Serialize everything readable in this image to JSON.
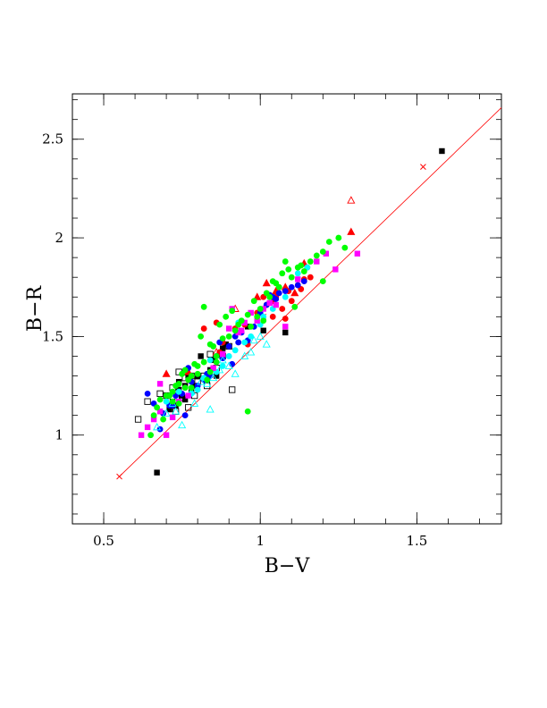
{
  "chart_data": {
    "type": "scatter",
    "xlabel": "B−V",
    "ylabel": "B−R",
    "xlim": [
      0.4,
      1.77
    ],
    "ylim": [
      0.55,
      2.73
    ],
    "x_ticks": [
      {
        "value": 0.5,
        "label": "0.5"
      },
      {
        "value": 1.0,
        "label": "1"
      },
      {
        "value": 1.5,
        "label": "1.5"
      }
    ],
    "y_ticks": [
      {
        "value": 1.0,
        "label": "1"
      },
      {
        "value": 1.5,
        "label": "1.5"
      },
      {
        "value": 2.0,
        "label": "2"
      },
      {
        "value": 2.5,
        "label": "2.5"
      }
    ],
    "x_minor_step": 0.1,
    "y_minor_step": 0.1,
    "grid": false,
    "reference_line": {
      "color": "#ff0000",
      "x": [
        0.55,
        1.77
      ],
      "y": [
        0.79,
        2.66
      ],
      "markers": [
        [
          0.55,
          0.79
        ],
        [
          1.01,
          1.6
        ],
        [
          1.52,
          2.36
        ]
      ]
    },
    "series": [
      {
        "color": "#000000",
        "marker": "square-filled",
        "points": [
          [
            1.58,
            2.44
          ],
          [
            0.67,
            0.81
          ],
          [
            1.08,
            1.52
          ],
          [
            1.01,
            1.53
          ],
          [
            0.71,
            1.13
          ],
          [
            0.74,
            1.27
          ],
          [
            0.76,
            1.25
          ],
          [
            0.78,
            1.22
          ],
          [
            0.8,
            1.3
          ],
          [
            0.83,
            1.28
          ],
          [
            0.85,
            1.38
          ],
          [
            0.88,
            1.44
          ],
          [
            0.76,
            1.18
          ],
          [
            0.79,
            1.25
          ],
          [
            0.81,
            1.4
          ],
          [
            0.75,
            1.2
          ],
          [
            0.72,
            1.17
          ],
          [
            0.84,
            1.33
          ],
          [
            0.89,
            1.46
          ],
          [
            0.96,
            1.55
          ],
          [
            0.77,
            1.29
          ],
          [
            0.74,
            1.23
          ],
          [
            0.86,
            1.3
          ],
          [
            0.73,
            1.15
          ]
        ]
      },
      {
        "color": "#000000",
        "marker": "square-open",
        "points": [
          [
            0.61,
            1.08
          ],
          [
            0.64,
            1.17
          ],
          [
            0.68,
            1.21
          ],
          [
            0.7,
            1.2
          ],
          [
            0.72,
            1.24
          ],
          [
            0.74,
            1.32
          ],
          [
            0.77,
            1.14
          ],
          [
            0.78,
            1.3
          ],
          [
            0.8,
            1.27
          ],
          [
            0.82,
            1.3
          ],
          [
            0.84,
            1.41
          ],
          [
            0.86,
            1.34
          ],
          [
            0.88,
            1.4
          ],
          [
            0.9,
            1.45
          ],
          [
            0.91,
            1.23
          ],
          [
            0.75,
            1.19
          ],
          [
            0.79,
            1.2
          ],
          [
            0.83,
            1.25
          ],
          [
            0.73,
            1.12
          ],
          [
            0.76,
            1.29
          ]
        ]
      },
      {
        "color": "#ff0000",
        "marker": "circle-filled",
        "points": [
          [
            0.82,
            1.54
          ],
          [
            0.86,
            1.57
          ],
          [
            0.88,
            1.47
          ],
          [
            0.92,
            1.54
          ],
          [
            0.95,
            1.56
          ],
          [
            0.99,
            1.62
          ],
          [
            1.02,
            1.66
          ],
          [
            1.05,
            1.7
          ],
          [
            1.07,
            1.64
          ],
          [
            1.08,
            1.59
          ],
          [
            1.1,
            1.68
          ],
          [
            1.12,
            1.76
          ],
          [
            1.14,
            1.79
          ],
          [
            1.16,
            1.8
          ],
          [
            1.09,
            1.73
          ],
          [
            1.04,
            1.6
          ],
          [
            0.96,
            1.46
          ],
          [
            0.87,
            1.42
          ],
          [
            1.13,
            1.74
          ],
          [
            1.01,
            1.7
          ],
          [
            1.15,
            1.85
          ],
          [
            1.06,
            1.75
          ]
        ]
      },
      {
        "color": "#ff0000",
        "marker": "triangle-filled",
        "points": [
          [
            1.29,
            2.03
          ],
          [
            1.02,
            1.77
          ],
          [
            1.05,
            1.73
          ],
          [
            1.08,
            1.75
          ],
          [
            1.11,
            1.72
          ],
          [
            1.14,
            1.87
          ],
          [
            0.7,
            1.31
          ],
          [
            0.77,
            1.32
          ],
          [
            0.99,
            1.7
          ],
          [
            1.04,
            1.68
          ]
        ]
      },
      {
        "color": "#ff0000",
        "marker": "triangle-open",
        "points": [
          [
            1.29,
            2.19
          ],
          [
            0.92,
            1.64
          ],
          [
            0.86,
            1.42
          ]
        ]
      },
      {
        "color": "#0000ff",
        "marker": "circle-filled",
        "points": [
          [
            0.64,
            1.21
          ],
          [
            0.66,
            1.16
          ],
          [
            0.68,
            1.03
          ],
          [
            0.69,
            1.11
          ],
          [
            0.71,
            1.15
          ],
          [
            0.73,
            1.2
          ],
          [
            0.76,
            1.1
          ],
          [
            0.78,
            1.27
          ],
          [
            0.8,
            1.25
          ],
          [
            0.82,
            1.28
          ],
          [
            0.84,
            1.3
          ],
          [
            0.86,
            1.4
          ],
          [
            0.88,
            1.39
          ],
          [
            0.9,
            1.45
          ],
          [
            0.92,
            1.5
          ],
          [
            0.94,
            1.52
          ],
          [
            0.96,
            1.48
          ],
          [
            0.98,
            1.55
          ],
          [
            1.0,
            1.62
          ],
          [
            1.02,
            1.66
          ],
          [
            1.04,
            1.7
          ],
          [
            1.06,
            1.72
          ],
          [
            1.08,
            1.73
          ],
          [
            1.1,
            1.75
          ],
          [
            1.12,
            1.76
          ],
          [
            1.14,
            1.78
          ],
          [
            0.87,
            1.47
          ],
          [
            0.77,
            1.34
          ],
          [
            0.75,
            1.21
          ],
          [
            0.72,
            1.15
          ],
          [
            0.83,
            1.31
          ],
          [
            0.91,
            1.36
          ],
          [
            0.93,
            1.47
          ],
          [
            1.03,
            1.71
          ],
          [
            1.05,
            1.69
          ]
        ]
      },
      {
        "color": "#00ffff",
        "marker": "circle-filled",
        "points": [
          [
            0.7,
            1.17
          ],
          [
            0.74,
            1.22
          ],
          [
            0.78,
            1.21
          ],
          [
            0.82,
            1.29
          ],
          [
            0.86,
            1.32
          ],
          [
            0.9,
            1.4
          ],
          [
            0.93,
            1.57
          ],
          [
            0.95,
            1.47
          ],
          [
            0.97,
            1.5
          ],
          [
            1.0,
            1.56
          ],
          [
            1.04,
            1.64
          ],
          [
            1.08,
            1.7
          ],
          [
            1.12,
            1.82
          ],
          [
            1.15,
            1.85
          ],
          [
            0.88,
            1.35
          ],
          [
            0.84,
            1.38
          ],
          [
            0.92,
            1.43
          ],
          [
            0.8,
            1.23
          ],
          [
            1.01,
            1.6
          ],
          [
            0.94,
            1.58
          ]
        ]
      },
      {
        "color": "#00ffff",
        "marker": "triangle-open",
        "points": [
          [
            0.67,
            1.04
          ],
          [
            0.7,
            1.11
          ],
          [
            0.72,
            1.16
          ],
          [
            0.75,
            1.05
          ],
          [
            0.78,
            1.22
          ],
          [
            0.81,
            1.27
          ],
          [
            0.84,
            1.13
          ],
          [
            0.87,
            1.33
          ],
          [
            0.9,
            1.35
          ],
          [
            0.92,
            1.31
          ],
          [
            0.95,
            1.4
          ],
          [
            0.97,
            1.42
          ],
          [
            0.98,
            1.48
          ],
          [
            1.0,
            1.5
          ],
          [
            1.02,
            1.46
          ],
          [
            0.79,
            1.16
          ],
          [
            0.85,
            1.29
          ],
          [
            0.88,
            1.38
          ],
          [
            0.73,
            1.12
          ],
          [
            0.83,
            1.26
          ]
        ]
      },
      {
        "color": "#ff00ff",
        "marker": "square-filled",
        "points": [
          [
            0.62,
            1.0
          ],
          [
            0.64,
            1.04
          ],
          [
            0.66,
            1.08
          ],
          [
            0.68,
            1.12
          ],
          [
            0.7,
            1.0
          ],
          [
            0.72,
            1.09
          ],
          [
            0.74,
            1.17
          ],
          [
            0.77,
            1.2
          ],
          [
            0.9,
            1.54
          ],
          [
            0.93,
            1.52
          ],
          [
            0.95,
            1.57
          ],
          [
            0.97,
            1.62
          ],
          [
            0.99,
            1.58
          ],
          [
            1.01,
            1.64
          ],
          [
            1.03,
            1.67
          ],
          [
            1.05,
            1.66
          ],
          [
            1.08,
            1.55
          ],
          [
            1.12,
            1.79
          ],
          [
            1.18,
            1.88
          ],
          [
            1.21,
            1.92
          ],
          [
            1.24,
            1.84
          ],
          [
            1.31,
            1.92
          ],
          [
            0.85,
            1.34
          ],
          [
            0.88,
            1.41
          ],
          [
            0.68,
            1.26
          ],
          [
            0.94,
            1.53
          ],
          [
            0.91,
            1.64
          ]
        ]
      },
      {
        "color": "#00ff00",
        "marker": "circle-filled",
        "points": [
          [
            0.66,
            1.1
          ],
          [
            0.68,
            1.18
          ],
          [
            0.7,
            1.2
          ],
          [
            0.72,
            1.22
          ],
          [
            0.74,
            1.26
          ],
          [
            0.76,
            1.24
          ],
          [
            0.78,
            1.3
          ],
          [
            0.8,
            1.35
          ],
          [
            0.82,
            1.37
          ],
          [
            0.84,
            1.46
          ],
          [
            0.86,
            1.4
          ],
          [
            0.88,
            1.49
          ],
          [
            0.9,
            1.5
          ],
          [
            0.92,
            1.53
          ],
          [
            0.94,
            1.58
          ],
          [
            0.96,
            1.61
          ],
          [
            0.98,
            1.68
          ],
          [
            1.0,
            1.64
          ],
          [
            1.02,
            1.72
          ],
          [
            1.04,
            1.78
          ],
          [
            1.06,
            1.75
          ],
          [
            1.08,
            1.88
          ],
          [
            1.1,
            1.8
          ],
          [
            1.12,
            1.85
          ],
          [
            1.14,
            1.83
          ],
          [
            1.16,
            1.88
          ],
          [
            1.18,
            1.91
          ],
          [
            1.2,
            1.93
          ],
          [
            1.22,
            1.98
          ],
          [
            1.25,
            2.0
          ],
          [
            1.27,
            1.95
          ],
          [
            1.2,
            1.78
          ],
          [
            1.11,
            1.65
          ],
          [
            0.96,
            1.12
          ],
          [
            0.81,
            1.5
          ],
          [
            0.82,
            1.65
          ],
          [
            0.83,
            1.28
          ],
          [
            0.71,
            1.2
          ],
          [
            0.73,
            1.25
          ],
          [
            0.75,
            1.31
          ],
          [
            0.77,
            1.28
          ],
          [
            0.79,
            1.36
          ],
          [
            0.85,
            1.45
          ],
          [
            0.87,
            1.56
          ],
          [
            0.89,
            1.6
          ],
          [
            0.91,
            1.63
          ],
          [
            0.93,
            1.56
          ],
          [
            0.97,
            1.55
          ],
          [
            0.99,
            1.6
          ],
          [
            1.01,
            1.58
          ],
          [
            1.03,
            1.7
          ],
          [
            1.05,
            1.77
          ],
          [
            1.07,
            1.82
          ],
          [
            1.09,
            1.84
          ],
          [
            1.13,
            1.86
          ],
          [
            0.67,
            1.14
          ],
          [
            0.69,
            1.08
          ],
          [
            0.72,
            1.17
          ],
          [
            0.65,
            1.0
          ],
          [
            0.74,
            1.16
          ],
          [
            0.76,
            1.33
          ],
          [
            0.78,
            1.24
          ],
          [
            0.8,
            1.31
          ],
          [
            0.84,
            1.32
          ],
          [
            0.86,
            1.37
          ]
        ]
      }
    ]
  }
}
